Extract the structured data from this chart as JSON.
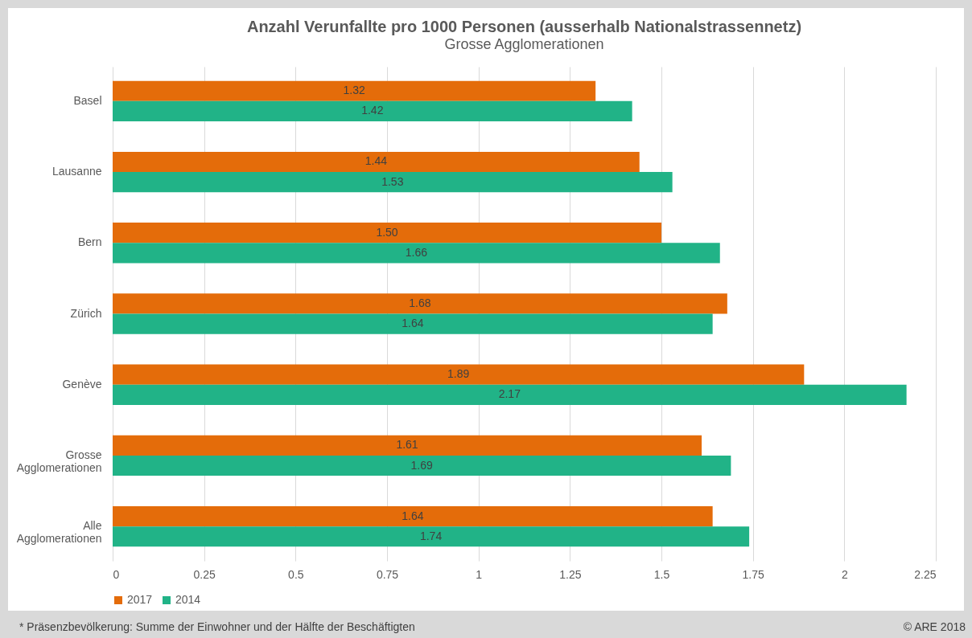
{
  "chart_data": {
    "type": "bar",
    "orientation": "horizontal",
    "title": "Anzahl Verunfallte pro 1000 Personen (ausserhalb Nationalstrassennetz)",
    "subtitle": "Grosse Agglomerationen",
    "categories": [
      "Basel",
      "Lausanne",
      "Bern",
      "Zürich",
      "Genève",
      "Grosse Agglomerationen",
      "Alle Agglomerationen"
    ],
    "series": [
      {
        "name": "2017",
        "color": "#e46c0a",
        "values": [
          1.32,
          1.44,
          1.5,
          1.68,
          1.89,
          1.61,
          1.64
        ],
        "value_labels": [
          "1.32",
          "1.44",
          "1.50",
          "1.68",
          "1.89",
          "1.61",
          "1.64"
        ]
      },
      {
        "name": "2014",
        "color": "#21b387",
        "values": [
          1.42,
          1.53,
          1.66,
          1.64,
          2.17,
          1.69,
          1.74
        ],
        "value_labels": [
          "1.42",
          "1.53",
          "1.66",
          "1.64",
          "2.17",
          "1.69",
          "1.74"
        ]
      }
    ],
    "xlim": [
      0,
      2.25
    ],
    "xticks": [
      0,
      0.25,
      0.5,
      0.75,
      1,
      1.25,
      1.5,
      1.75,
      2,
      2.25
    ],
    "grid": "x",
    "legend": "bottom",
    "annotations": [
      "* Präsenzbevölkerung: Summe der Einwohner und der Hälfte der Beschäftigten",
      "© ARE 2018"
    ]
  }
}
